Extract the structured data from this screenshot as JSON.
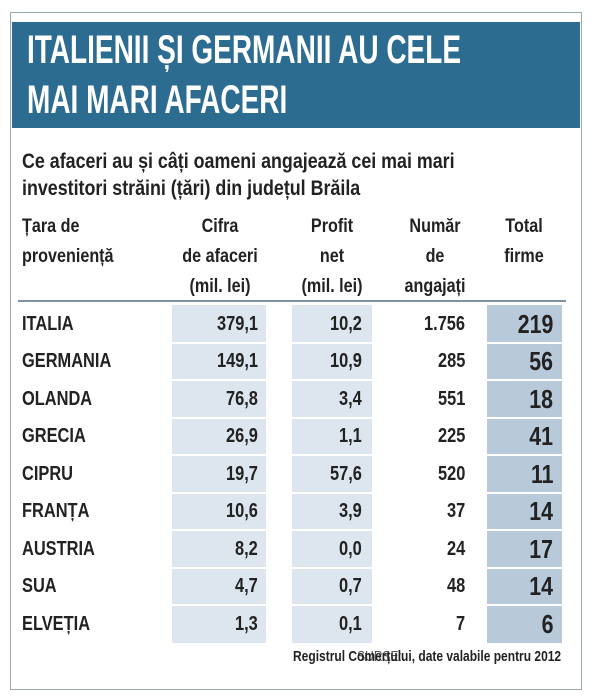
{
  "header": {
    "title_lines": [
      "ITALIENII ȘI GERMANII AU CELE",
      "MAI MARI AFACERI"
    ]
  },
  "subtitle": [
    "Ce afaceri au și câți oameni angajează cei mai mari",
    "investitori străini (țări) din județul Brăila"
  ],
  "table": {
    "columns": [
      [
        "Țara de",
        "proveniență"
      ],
      [
        "Cifra",
        "de afaceri",
        "(mil. lei)"
      ],
      [
        "Profit",
        "net",
        "(mil. lei)"
      ],
      [
        "Număr",
        "de",
        "angajați"
      ],
      [
        "Total",
        "firme"
      ]
    ],
    "rows": [
      [
        "ITALIA",
        "379,1",
        "10,2",
        "1.756",
        "219"
      ],
      [
        "GERMANIA",
        "149,1",
        "10,9",
        "285",
        "56"
      ],
      [
        "OLANDA",
        "76,8",
        "3,4",
        "551",
        "18"
      ],
      [
        "GRECIA",
        "26,9",
        "1,1",
        "225",
        "41"
      ],
      [
        "CIPRU",
        "19,7",
        "57,6",
        "520",
        "11"
      ],
      [
        "FRANȚA",
        "10,6",
        "3,9",
        "37",
        "14"
      ],
      [
        "AUSTRIA",
        "8,2",
        "0,0",
        "24",
        "17"
      ],
      [
        "SUA",
        "4,7",
        "0,7",
        "48",
        "14"
      ],
      [
        "ELVEȚIA",
        "1,3",
        "0,1",
        "7",
        "6"
      ]
    ]
  },
  "source": {
    "label": "SURSE:",
    "text": "Registrul Comerțului, date valabile pentru 2012"
  }
}
